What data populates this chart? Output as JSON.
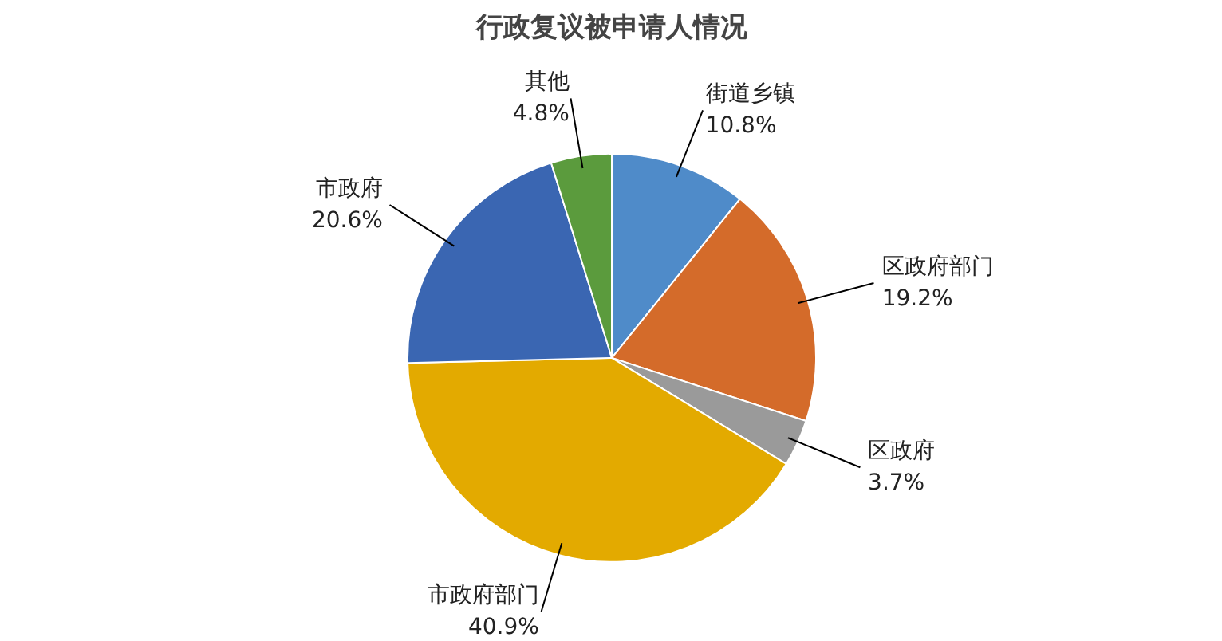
{
  "chart_data": {
    "type": "pie",
    "title": "行政复议被申请人情况",
    "categories": [
      "街道乡镇",
      "区政府部门",
      "区政府",
      "市政府部门",
      "市政府",
      "其他"
    ],
    "values": [
      10.8,
      19.2,
      3.7,
      40.9,
      20.6,
      4.8
    ],
    "value_labels": [
      "10.8%",
      "19.2%",
      "3.7%",
      "40.9%",
      "20.6%",
      "4.8%"
    ],
    "colors": [
      "#4f8bc9",
      "#d46b2a",
      "#9a9a9a",
      "#e3aa00",
      "#3a66b2",
      "#5b9b3d"
    ]
  }
}
